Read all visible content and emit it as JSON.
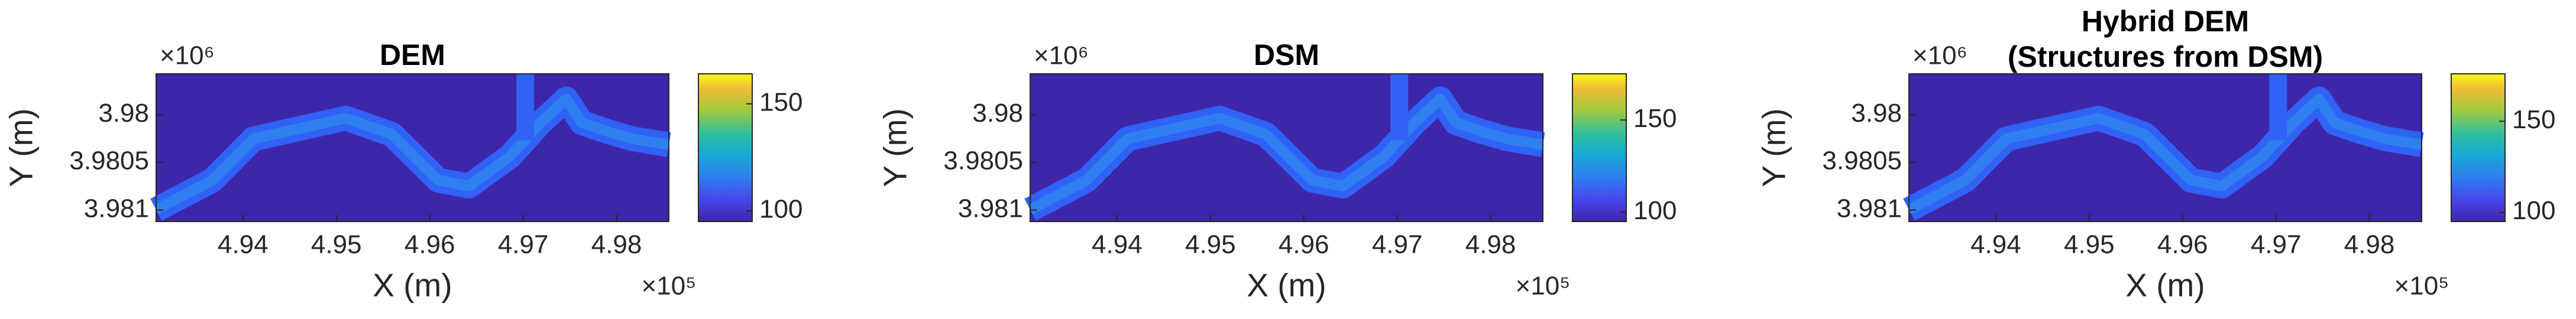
{
  "chart_data": [
    {
      "type": "heatmap",
      "title": "DEM",
      "xlabel": "X (m)",
      "ylabel": "Y (m)",
      "x_exponent": "×10⁵",
      "y_exponent": "×10⁶",
      "colormap": "parula",
      "y_reverse": true,
      "xlim": [
        493070,
        498560
      ],
      "xticks": [
        {
          "value": 494000,
          "label": "4.94"
        },
        {
          "value": 495000,
          "label": "4.95"
        },
        {
          "value": 496000,
          "label": "4.96"
        },
        {
          "value": 497000,
          "label": "4.97"
        },
        {
          "value": 498000,
          "label": "4.98"
        }
      ],
      "ylim": [
        3979570,
        3981120
      ],
      "yticks": [
        {
          "value": 3980000,
          "label": "3.98"
        },
        {
          "value": 3980500,
          "label": "3.9805"
        },
        {
          "value": 3981000,
          "label": "3.981"
        }
      ],
      "clim": [
        95,
        164
      ],
      "cticks": [
        100,
        150
      ]
    },
    {
      "type": "heatmap",
      "title": "DSM",
      "xlabel": "X (m)",
      "ylabel": "Y (m)",
      "x_exponent": "×10⁵",
      "y_exponent": "×10⁶",
      "colormap": "parula",
      "y_reverse": true,
      "xlim": [
        493070,
        498560
      ],
      "xticks": [
        {
          "value": 494000,
          "label": "4.94"
        },
        {
          "value": 495000,
          "label": "4.95"
        },
        {
          "value": 496000,
          "label": "4.96"
        },
        {
          "value": 497000,
          "label": "4.97"
        },
        {
          "value": 498000,
          "label": "4.98"
        }
      ],
      "ylim": [
        3979570,
        3981120
      ],
      "yticks": [
        {
          "value": 3980000,
          "label": "3.98"
        },
        {
          "value": 3980500,
          "label": "3.9805"
        },
        {
          "value": 3981000,
          "label": "3.981"
        }
      ],
      "clim": [
        95,
        175
      ],
      "cticks": [
        100,
        150
      ]
    },
    {
      "type": "heatmap",
      "title": [
        "Hybrid DEM",
        "(Structures from DSM)"
      ],
      "xlabel": "X (m)",
      "ylabel": "Y (m)",
      "x_exponent": "×10⁵",
      "y_exponent": "×10⁶",
      "colormap": "parula",
      "y_reverse": true,
      "xlim": [
        493070,
        498560
      ],
      "xticks": [
        {
          "value": 494000,
          "label": "4.94"
        },
        {
          "value": 495000,
          "label": "4.95"
        },
        {
          "value": 496000,
          "label": "4.96"
        },
        {
          "value": 497000,
          "label": "4.97"
        },
        {
          "value": 498000,
          "label": "4.98"
        }
      ],
      "ylim": [
        3979570,
        3981120
      ],
      "yticks": [
        {
          "value": 3980000,
          "label": "3.98"
        },
        {
          "value": 3980500,
          "label": "3.9805"
        },
        {
          "value": 3981000,
          "label": "3.981"
        }
      ],
      "clim": [
        95,
        176
      ],
      "cticks": [
        100,
        150
      ]
    }
  ]
}
